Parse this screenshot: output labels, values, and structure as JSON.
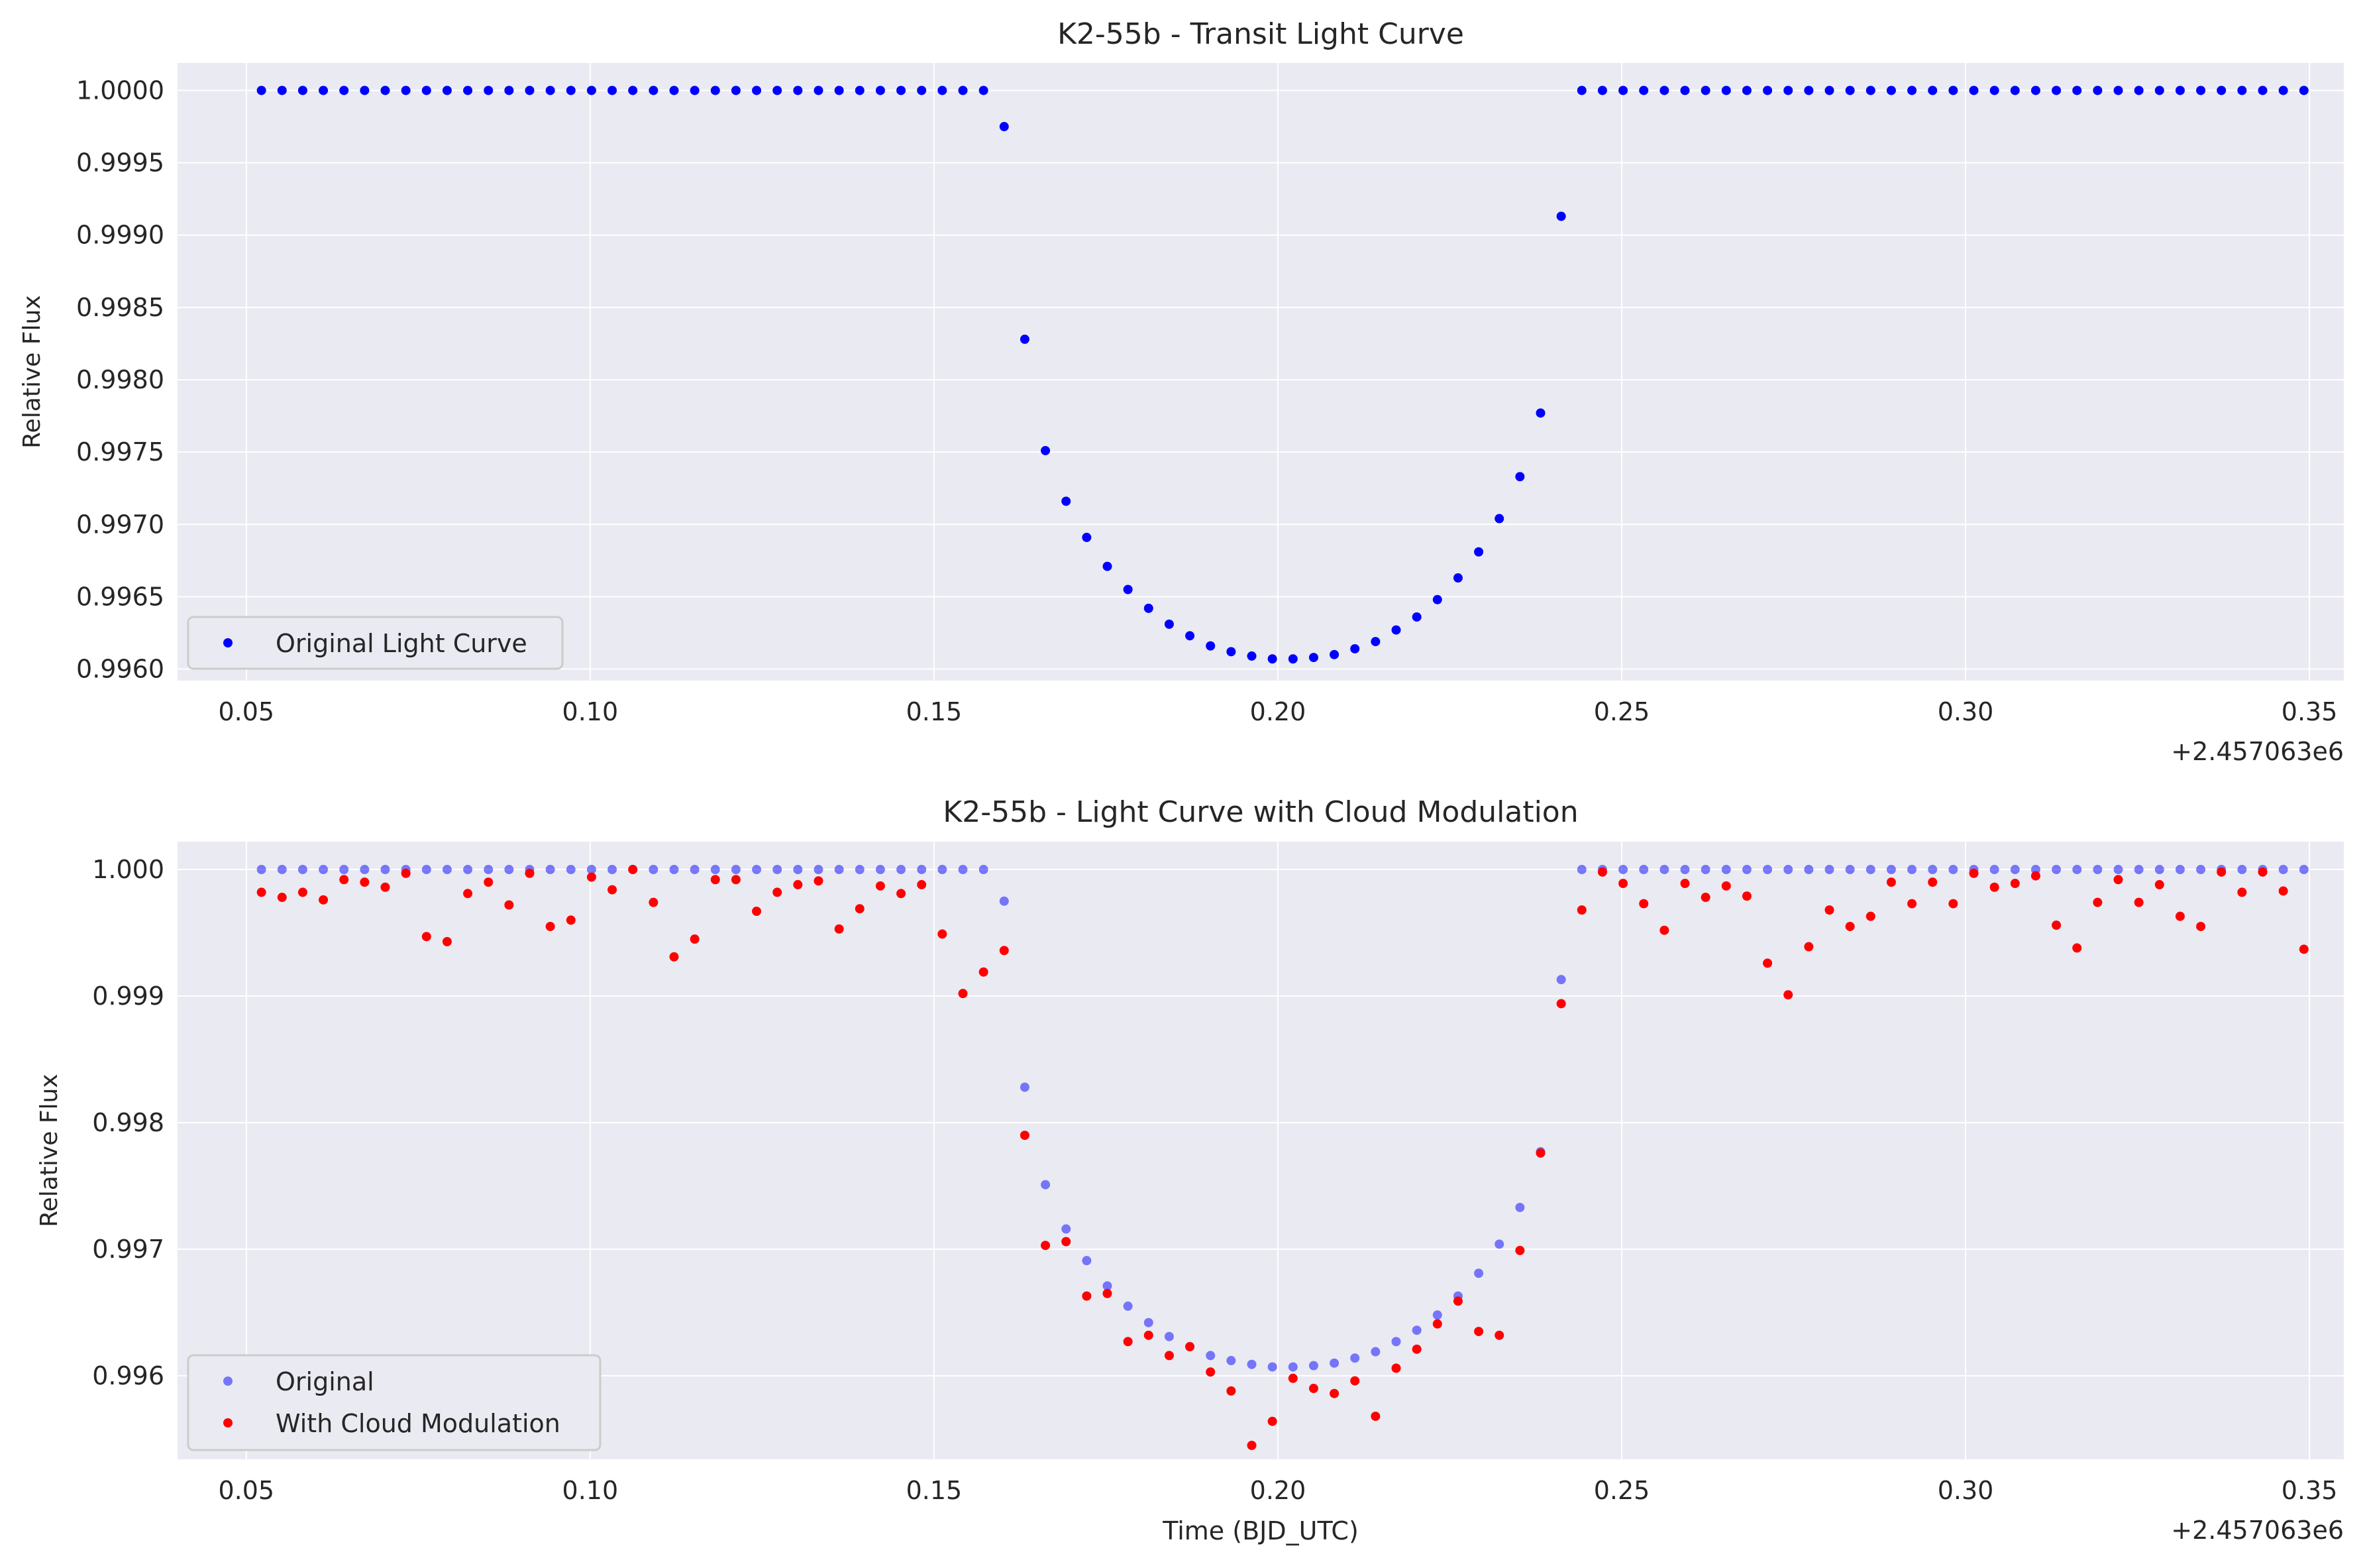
{
  "chart_data": [
    {
      "type": "scatter",
      "title": "K2-55b - Transit Light Curve",
      "xlabel": "",
      "ylabel": "Relative Flux",
      "x_offset_label": "+2.457063e6",
      "xlim": [
        0.04,
        0.355
      ],
      "ylim": [
        0.99592,
        1.00019
      ],
      "xticks": [
        0.05,
        0.1,
        0.15,
        0.2,
        0.25,
        0.3,
        0.35
      ],
      "xtick_labels": [
        "0.05",
        "0.10",
        "0.15",
        "0.20",
        "0.25",
        "0.30",
        "0.35"
      ],
      "yticks": [
        0.996,
        0.9965,
        0.997,
        0.9975,
        0.998,
        0.9985,
        0.999,
        0.9995,
        1.0
      ],
      "ytick_labels": [
        "0.9960",
        "0.9965",
        "0.9970",
        "0.9975",
        "0.9980",
        "0.9985",
        "0.9990",
        "0.9995",
        "1.0000"
      ],
      "grid": true,
      "legend_position": "lower-left",
      "series": [
        {
          "name": "Original Light Curve",
          "color": "#0000ff",
          "opacity": 1.0,
          "x": [
            0.0522,
            0.0552,
            0.0582,
            0.0612,
            0.0642,
            0.0672,
            0.0702,
            0.0732,
            0.0762,
            0.0792,
            0.0822,
            0.0852,
            0.0882,
            0.0912,
            0.0942,
            0.0972,
            0.1002,
            0.1032,
            0.1062,
            0.1092,
            0.1122,
            0.1152,
            0.1182,
            0.1212,
            0.1242,
            0.1272,
            0.1302,
            0.1332,
            0.1362,
            0.1392,
            0.1422,
            0.1452,
            0.1482,
            0.1512,
            0.1542,
            0.1572,
            0.1602,
            0.1632,
            0.1662,
            0.1692,
            0.1722,
            0.1752,
            0.1782,
            0.1812,
            0.1842,
            0.1872,
            0.1902,
            0.1932,
            0.1962,
            0.1992,
            0.2022,
            0.2052,
            0.2082,
            0.2112,
            0.2142,
            0.2172,
            0.2202,
            0.2232,
            0.2262,
            0.2292,
            0.2322,
            0.2352,
            0.2382,
            0.2412,
            0.2442,
            0.2472,
            0.2502,
            0.2532,
            0.2562,
            0.2592,
            0.2622,
            0.2652,
            0.2682,
            0.2712,
            0.2742,
            0.2772,
            0.2802,
            0.2832,
            0.2862,
            0.2892,
            0.2922,
            0.2952,
            0.2982,
            0.3012,
            0.3042,
            0.3072,
            0.3102,
            0.3132,
            0.3162,
            0.3192,
            0.3222,
            0.3252,
            0.3282,
            0.3312,
            0.3342,
            0.3372,
            0.3402,
            0.3432,
            0.3462,
            0.3492
          ],
          "y": [
            1.0,
            1.0,
            1.0,
            1.0,
            1.0,
            1.0,
            1.0,
            1.0,
            1.0,
            1.0,
            1.0,
            1.0,
            1.0,
            1.0,
            1.0,
            1.0,
            1.0,
            1.0,
            1.0,
            1.0,
            1.0,
            1.0,
            1.0,
            1.0,
            1.0,
            1.0,
            1.0,
            1.0,
            1.0,
            1.0,
            1.0,
            1.0,
            1.0,
            1.0,
            1.0,
            1.0,
            0.99975,
            0.99828,
            0.99751,
            0.99716,
            0.99691,
            0.99671,
            0.99655,
            0.99642,
            0.99631,
            0.99623,
            0.99616,
            0.99612,
            0.99609,
            0.99607,
            0.99607,
            0.99608,
            0.9961,
            0.99614,
            0.99619,
            0.99627,
            0.99636,
            0.99648,
            0.99663,
            0.99681,
            0.99704,
            0.99733,
            0.99777,
            0.99913,
            1.0,
            1.0,
            1.0,
            1.0,
            1.0,
            1.0,
            1.0,
            1.0,
            1.0,
            1.0,
            1.0,
            1.0,
            1.0,
            1.0,
            1.0,
            1.0,
            1.0,
            1.0,
            1.0,
            1.0,
            1.0,
            1.0,
            1.0,
            1.0,
            1.0,
            1.0,
            1.0,
            1.0,
            1.0,
            1.0,
            1.0,
            1.0,
            1.0,
            1.0,
            1.0,
            1.0
          ]
        }
      ]
    },
    {
      "type": "scatter",
      "title": "K2-55b - Light Curve with Cloud Modulation",
      "xlabel": "Time (BJD_UTC)",
      "ylabel": "Relative Flux",
      "x_offset_label": "+2.457063e6",
      "xlim": [
        0.04,
        0.355
      ],
      "ylim": [
        0.99534,
        1.00022
      ],
      "xticks": [
        0.05,
        0.1,
        0.15,
        0.2,
        0.25,
        0.3,
        0.35
      ],
      "xtick_labels": [
        "0.05",
        "0.10",
        "0.15",
        "0.20",
        "0.25",
        "0.30",
        "0.35"
      ],
      "yticks": [
        0.996,
        0.997,
        0.998,
        0.999,
        1.0
      ],
      "ytick_labels": [
        "0.996",
        "0.997",
        "0.998",
        "0.999",
        "1.000"
      ],
      "grid": true,
      "legend_position": "lower-left",
      "series": [
        {
          "name": "Original",
          "color": "#0000ff",
          "opacity": 0.5,
          "x": [
            0.0522,
            0.0552,
            0.0582,
            0.0612,
            0.0642,
            0.0672,
            0.0702,
            0.0732,
            0.0762,
            0.0792,
            0.0822,
            0.0852,
            0.0882,
            0.0912,
            0.0942,
            0.0972,
            0.1002,
            0.1032,
            0.1062,
            0.1092,
            0.1122,
            0.1152,
            0.1182,
            0.1212,
            0.1242,
            0.1272,
            0.1302,
            0.1332,
            0.1362,
            0.1392,
            0.1422,
            0.1452,
            0.1482,
            0.1512,
            0.1542,
            0.1572,
            0.1602,
            0.1632,
            0.1662,
            0.1692,
            0.1722,
            0.1752,
            0.1782,
            0.1812,
            0.1842,
            0.1872,
            0.1902,
            0.1932,
            0.1962,
            0.1992,
            0.2022,
            0.2052,
            0.2082,
            0.2112,
            0.2142,
            0.2172,
            0.2202,
            0.2232,
            0.2262,
            0.2292,
            0.2322,
            0.2352,
            0.2382,
            0.2412,
            0.2442,
            0.2472,
            0.2502,
            0.2532,
            0.2562,
            0.2592,
            0.2622,
            0.2652,
            0.2682,
            0.2712,
            0.2742,
            0.2772,
            0.2802,
            0.2832,
            0.2862,
            0.2892,
            0.2922,
            0.2952,
            0.2982,
            0.3012,
            0.3042,
            0.3072,
            0.3102,
            0.3132,
            0.3162,
            0.3192,
            0.3222,
            0.3252,
            0.3282,
            0.3312,
            0.3342,
            0.3372,
            0.3402,
            0.3432,
            0.3462,
            0.3492
          ],
          "y": [
            1.0,
            1.0,
            1.0,
            1.0,
            1.0,
            1.0,
            1.0,
            1.0,
            1.0,
            1.0,
            1.0,
            1.0,
            1.0,
            1.0,
            1.0,
            1.0,
            1.0,
            1.0,
            1.0,
            1.0,
            1.0,
            1.0,
            1.0,
            1.0,
            1.0,
            1.0,
            1.0,
            1.0,
            1.0,
            1.0,
            1.0,
            1.0,
            1.0,
            1.0,
            1.0,
            1.0,
            0.99975,
            0.99828,
            0.99751,
            0.99716,
            0.99691,
            0.99671,
            0.99655,
            0.99642,
            0.99631,
            0.99623,
            0.99616,
            0.99612,
            0.99609,
            0.99607,
            0.99607,
            0.99608,
            0.9961,
            0.99614,
            0.99619,
            0.99627,
            0.99636,
            0.99648,
            0.99663,
            0.99681,
            0.99704,
            0.99733,
            0.99777,
            0.99913,
            1.0,
            1.0,
            1.0,
            1.0,
            1.0,
            1.0,
            1.0,
            1.0,
            1.0,
            1.0,
            1.0,
            1.0,
            1.0,
            1.0,
            1.0,
            1.0,
            1.0,
            1.0,
            1.0,
            1.0,
            1.0,
            1.0,
            1.0,
            1.0,
            1.0,
            1.0,
            1.0,
            1.0,
            1.0,
            1.0,
            1.0,
            1.0,
            1.0,
            1.0,
            1.0,
            1.0
          ]
        },
        {
          "name": "With Cloud Modulation",
          "color": "#ff0000",
          "opacity": 1.0,
          "x": [
            0.0522,
            0.0552,
            0.0582,
            0.0612,
            0.0642,
            0.0672,
            0.0702,
            0.0732,
            0.0762,
            0.0792,
            0.0822,
            0.0852,
            0.0882,
            0.0912,
            0.0942,
            0.0972,
            0.1002,
            0.1032,
            0.1062,
            0.1092,
            0.1122,
            0.1152,
            0.1182,
            0.1212,
            0.1242,
            0.1272,
            0.1302,
            0.1332,
            0.1362,
            0.1392,
            0.1422,
            0.1452,
            0.1482,
            0.1512,
            0.1542,
            0.1572,
            0.1602,
            0.1632,
            0.1662,
            0.1692,
            0.1722,
            0.1752,
            0.1782,
            0.1812,
            0.1842,
            0.1872,
            0.1902,
            0.1932,
            0.1962,
            0.1992,
            0.2022,
            0.2052,
            0.2082,
            0.2112,
            0.2142,
            0.2172,
            0.2202,
            0.2232,
            0.2262,
            0.2292,
            0.2322,
            0.2352,
            0.2382,
            0.2412,
            0.2442,
            0.2472,
            0.2502,
            0.2532,
            0.2562,
            0.2592,
            0.2622,
            0.2652,
            0.2682,
            0.2712,
            0.2742,
            0.2772,
            0.2802,
            0.2832,
            0.2862,
            0.2892,
            0.2922,
            0.2952,
            0.2982,
            0.3012,
            0.3042,
            0.3072,
            0.3102,
            0.3132,
            0.3162,
            0.3192,
            0.3222,
            0.3252,
            0.3282,
            0.3312,
            0.3342,
            0.3372,
            0.3402,
            0.3432,
            0.3462,
            0.3492
          ],
          "y": [
            0.99982,
            0.99978,
            0.99982,
            0.99976,
            0.99992,
            0.9999,
            0.99986,
            0.99997,
            0.99947,
            0.99943,
            0.99981,
            0.9999,
            0.99972,
            0.99997,
            0.99955,
            0.9996,
            0.99994,
            0.99984,
            1.0,
            0.99974,
            0.99931,
            0.99945,
            0.99992,
            0.99992,
            0.99967,
            0.99982,
            0.99988,
            0.99991,
            0.99953,
            0.99969,
            0.99987,
            0.99981,
            0.99988,
            0.99949,
            0.99902,
            0.99919,
            0.99936,
            0.9979,
            0.99703,
            0.99706,
            0.99663,
            0.99665,
            0.99627,
            0.99632,
            0.99616,
            0.99623,
            0.99603,
            0.99588,
            0.99545,
            0.99564,
            0.99598,
            0.9959,
            0.99586,
            0.99596,
            0.99568,
            0.99606,
            0.99621,
            0.99641,
            0.99659,
            0.99635,
            0.99632,
            0.99699,
            0.99776,
            0.99894,
            0.99968,
            0.99998,
            0.99989,
            0.99973,
            0.99952,
            0.99989,
            0.99978,
            0.99987,
            0.99979,
            0.99926,
            0.99901,
            0.99939,
            0.99968,
            0.99955,
            0.99963,
            0.9999,
            0.99973,
            0.9999,
            0.99973,
            0.99997,
            0.99986,
            0.99989,
            0.99995,
            0.99956,
            0.99938,
            0.99974,
            0.99992,
            0.99974,
            0.99988,
            0.99963,
            0.99955,
            0.99998,
            0.99982,
            0.99998,
            0.99983,
            0.99937
          ]
        }
      ]
    }
  ],
  "colors": {
    "axes_background": "#eaeaf2",
    "grid": "#ffffff",
    "text": "#262626"
  }
}
